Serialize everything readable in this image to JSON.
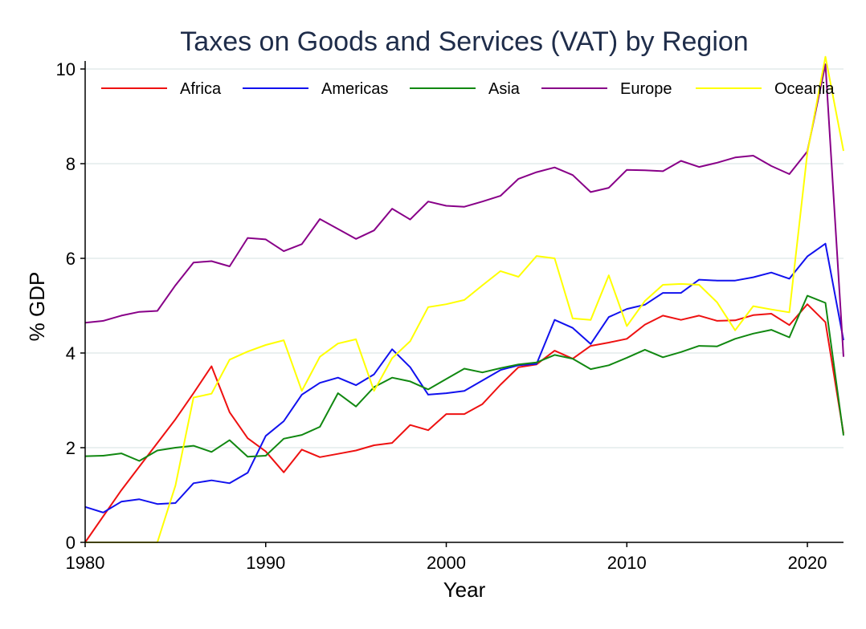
{
  "chart_data": {
    "type": "line",
    "title": "Taxes on Goods and Services (VAT) by Region",
    "xlabel": "Year",
    "ylabel": "% GDP",
    "xlim": [
      1980,
      2022
    ],
    "ylim": [
      0,
      10
    ],
    "xticks": [
      1980,
      1990,
      2000,
      2010,
      2020
    ],
    "yticks": [
      0,
      2,
      4,
      6,
      8,
      10
    ],
    "grid": "horizontal",
    "legend": "top, single row inside plot",
    "x": [
      1980,
      1981,
      1982,
      1983,
      1984,
      1985,
      1986,
      1987,
      1988,
      1989,
      1990,
      1991,
      1992,
      1993,
      1994,
      1995,
      1996,
      1997,
      1998,
      1999,
      2000,
      2001,
      2002,
      2003,
      2004,
      2005,
      2006,
      2007,
      2008,
      2009,
      2010,
      2011,
      2012,
      2013,
      2014,
      2015,
      2016,
      2017,
      2018,
      2019,
      2020,
      2021,
      2022
    ],
    "series": [
      {
        "name": "Africa",
        "color": "#ee1111",
        "values": [
          0.0,
          0.55,
          1.1,
          1.6,
          2.1,
          2.6,
          3.15,
          3.72,
          2.75,
          2.2,
          1.92,
          1.48,
          1.96,
          1.8,
          1.87,
          1.94,
          2.05,
          2.1,
          2.48,
          2.37,
          2.71,
          2.71,
          2.92,
          3.33,
          3.7,
          3.76,
          4.05,
          3.88,
          4.15,
          4.22,
          4.3,
          4.6,
          4.79,
          4.7,
          4.79,
          4.68,
          4.69,
          4.8,
          4.83,
          4.59,
          5.03,
          4.65,
          2.3
        ]
      },
      {
        "name": "Americas",
        "color": "#1111ee",
        "values": [
          0.75,
          0.63,
          0.86,
          0.91,
          0.81,
          0.83,
          1.25,
          1.31,
          1.25,
          1.47,
          2.25,
          2.56,
          3.12,
          3.37,
          3.48,
          3.32,
          3.55,
          4.08,
          3.7,
          3.12,
          3.15,
          3.2,
          3.42,
          3.64,
          3.74,
          3.77,
          4.7,
          4.53,
          4.19,
          4.76,
          4.93,
          5.02,
          5.27,
          5.27,
          5.55,
          5.53,
          5.53,
          5.6,
          5.7,
          5.57,
          6.04,
          6.31,
          4.27
        ]
      },
      {
        "name": "Asia",
        "color": "#118811",
        "values": [
          1.82,
          1.83,
          1.88,
          1.72,
          1.94,
          2.0,
          2.04,
          1.91,
          2.16,
          1.81,
          1.83,
          2.19,
          2.27,
          2.44,
          3.15,
          2.87,
          3.28,
          3.48,
          3.4,
          3.23,
          3.45,
          3.67,
          3.59,
          3.68,
          3.76,
          3.8,
          3.96,
          3.88,
          3.66,
          3.74,
          3.9,
          4.07,
          3.91,
          4.02,
          4.15,
          4.14,
          4.3,
          4.41,
          4.49,
          4.33,
          5.21,
          5.06,
          2.26
        ]
      },
      {
        "name": "Europe",
        "color": "#880088",
        "values": [
          4.64,
          4.68,
          4.79,
          4.87,
          4.89,
          5.43,
          5.91,
          5.94,
          5.83,
          6.43,
          6.4,
          6.15,
          6.3,
          6.83,
          6.62,
          6.41,
          6.59,
          7.05,
          6.82,
          7.2,
          7.11,
          7.09,
          7.2,
          7.32,
          7.68,
          7.82,
          7.92,
          7.76,
          7.4,
          7.49,
          7.87,
          7.86,
          7.84,
          8.06,
          7.93,
          8.02,
          8.13,
          8.17,
          7.95,
          7.78,
          8.26,
          10.1,
          3.92
        ]
      },
      {
        "name": "Oceania",
        "color": "#ffff00",
        "values": [
          0.0,
          0.0,
          0.0,
          0.0,
          0.0,
          1.2,
          3.06,
          3.14,
          3.86,
          4.03,
          4.17,
          4.27,
          3.2,
          3.92,
          4.2,
          4.29,
          3.2,
          3.89,
          4.25,
          4.97,
          5.03,
          5.12,
          5.43,
          5.73,
          5.61,
          6.05,
          6.0,
          4.73,
          4.7,
          5.64,
          4.57,
          5.1,
          5.44,
          5.46,
          5.44,
          5.07,
          4.48,
          4.99,
          4.92,
          4.86,
          8.23,
          10.26,
          8.27
        ]
      }
    ]
  }
}
